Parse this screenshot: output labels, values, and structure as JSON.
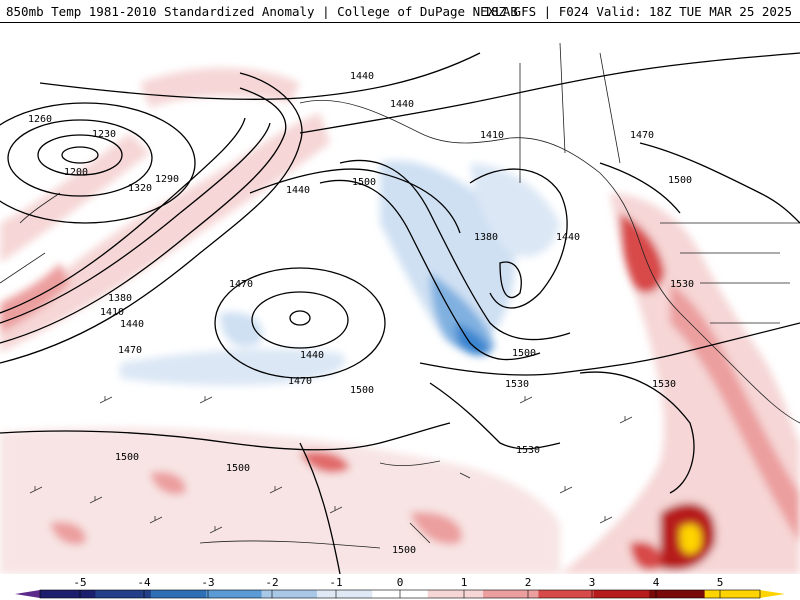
{
  "header": {
    "title": "850mb Temp 1981-2010 Standardized Anomaly | College of DuPage NEXLAB",
    "run_info": "18Z GFS | F024 Valid: 18Z TUE MAR 25 2025"
  },
  "contour_labels": [
    "1440",
    "1440",
    "1260",
    "1230",
    "1200",
    "1290",
    "1320",
    "1410",
    "1440",
    "1500",
    "1380",
    "1470",
    "1440",
    "1380",
    "1410",
    "1440",
    "1470",
    "1470",
    "1440",
    "1470",
    "1500",
    "1500",
    "1530",
    "1530",
    "1500",
    "1500",
    "1530",
    "1500",
    "1500"
  ],
  "colorbar": {
    "ticks": [
      "-5",
      "-4",
      "-3",
      "-2",
      "-1",
      "0",
      "1",
      "2",
      "3",
      "4",
      "5"
    ],
    "colors": [
      "#1c1f6e",
      "#233f8a",
      "#2f6fb6",
      "#5a9bd6",
      "#a9c8e8",
      "#dfe9f5",
      "#ffffff",
      "#f6d6d6",
      "#ec9f9f",
      "#d84a4a",
      "#b71c1c",
      "#7a0a0a",
      "#ffd400"
    ]
  }
}
